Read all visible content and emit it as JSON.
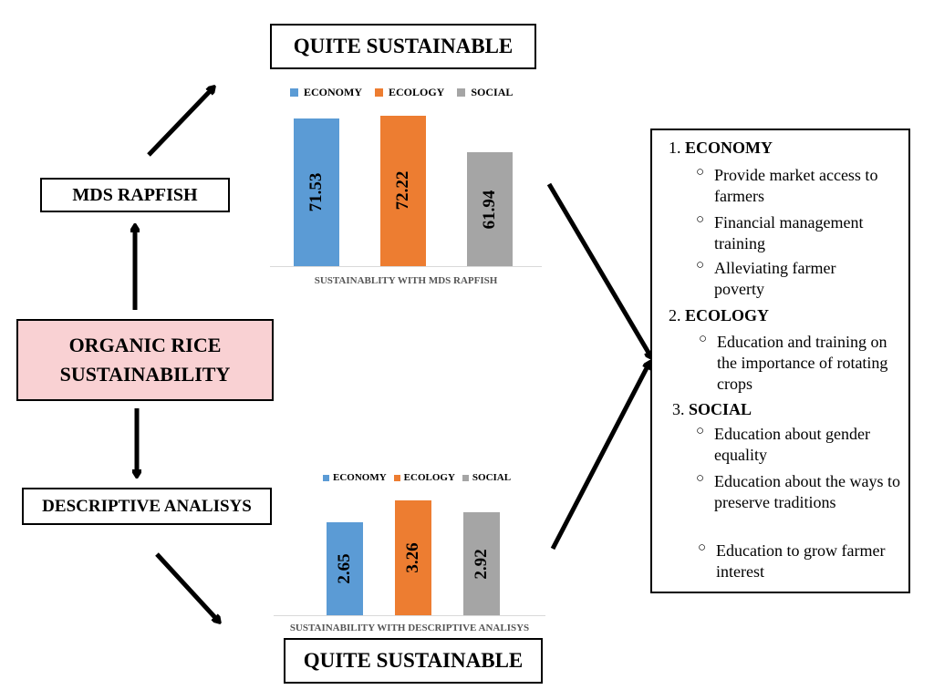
{
  "center": {
    "label_line1": "ORGANIC RICE",
    "label_line2": "SUSTAINABILITY",
    "fill": "#f9d1d3"
  },
  "methods": {
    "mds": "MDS RAPFISH",
    "descriptive": "DESCRIPTIVE ANALISYS"
  },
  "results": {
    "top": "QUITE SUSTAINABLE",
    "bottom": "QUITE SUSTAINABLE"
  },
  "colors": {
    "economy": "#5b9bd5",
    "ecology": "#ed7d31",
    "social": "#a5a5a5"
  },
  "chart_data": [
    {
      "type": "bar",
      "categories": [
        "ECONOMY",
        "ECOLOGY",
        "SOCIAL"
      ],
      "values": [
        71.53,
        72.22,
        61.94
      ],
      "value_labels": [
        "71.53",
        "72.22",
        "61.94"
      ],
      "ylim": [
        30,
        75
      ],
      "caption": "SUSTAINABLITY WITH MDS RAPFISH",
      "legend": [
        "ECONOMY",
        "ECOLOGY",
        "SOCIAL"
      ],
      "legend_position": "top"
    },
    {
      "type": "bar",
      "categories": [
        "ECONOMY",
        "ECOLOGY",
        "SOCIAL"
      ],
      "values": [
        2.65,
        3.26,
        2.92
      ],
      "value_labels": [
        "2.65",
        "3.26",
        "2.92"
      ],
      "ylim": [
        0,
        3.5
      ],
      "caption": "SUSTAINABILITY WITH DESCRIPTIVE ANALISYS",
      "legend": [
        "ECONOMY",
        "ECOLOGY",
        "SOCIAL"
      ],
      "legend_position": "top"
    }
  ],
  "recommendations": [
    {
      "number": "1.",
      "title": "ECONOMY",
      "items": [
        "Provide market access to farmers",
        "Financial management training",
        "Alleviating farmer poverty"
      ]
    },
    {
      "number": "2.",
      "title": "ECOLOGY",
      "items": [
        "Education and training on the importance of rotating crops"
      ]
    },
    {
      "number": "3.",
      "title": "SOCIAL",
      "items": [
        "Education about gender equality",
        "Education about the ways to preserve traditions",
        "Education to grow farmer interest"
      ]
    }
  ]
}
